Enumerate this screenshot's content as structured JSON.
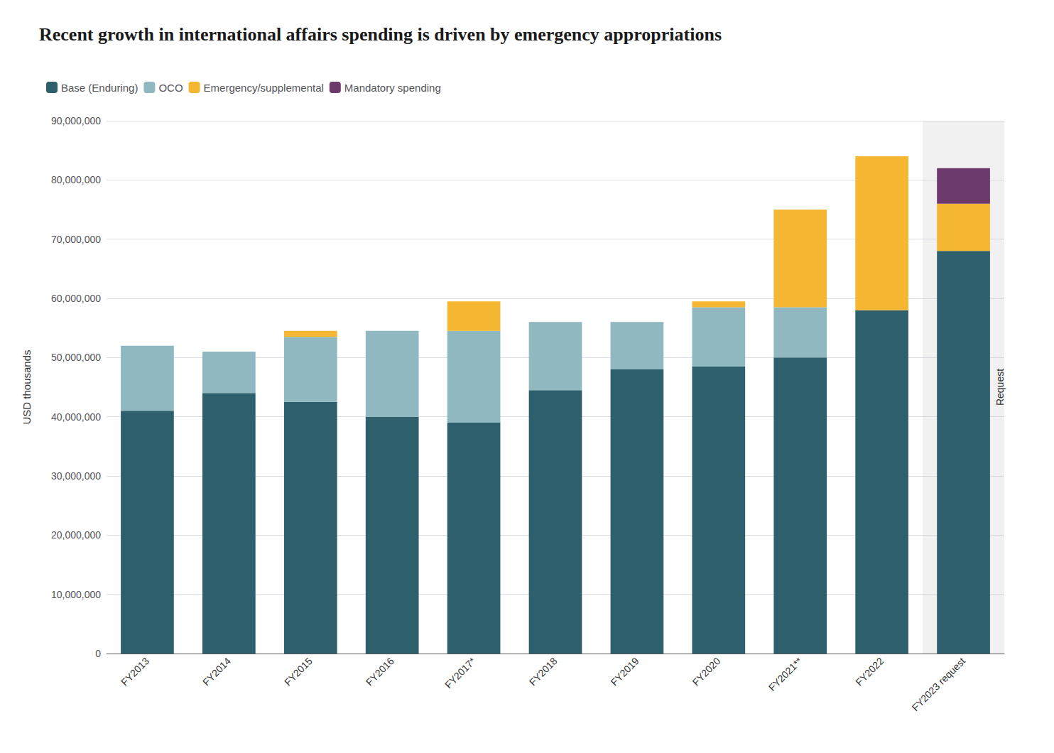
{
  "chart_data": {
    "type": "bar",
    "stacked": true,
    "title": "Recent growth in international affairs spending is driven by emergency appropriations",
    "ylabel": "USD thousands",
    "categories": [
      "FY2013",
      "FY2014",
      "FY2015",
      "FY2016",
      "FY2017*",
      "FY2018",
      "FY2019",
      "FY2020",
      "FY2021**",
      "FY2022",
      "FY2023 request"
    ],
    "series": [
      {
        "name": "Base (Enduring)",
        "color": "#2e5f6c",
        "values": [
          41000000,
          44000000,
          42500000,
          40000000,
          39000000,
          44500000,
          48000000,
          48500000,
          50000000,
          58000000,
          68000000
        ]
      },
      {
        "name": "OCO",
        "color": "#8fb8c0",
        "values": [
          11000000,
          7000000,
          11000000,
          14500000,
          15500000,
          11500000,
          8000000,
          10000000,
          8500000,
          0,
          0
        ]
      },
      {
        "name": "Emergency/supplemental",
        "color": "#f5b731",
        "values": [
          0,
          0,
          1000000,
          0,
          5000000,
          0,
          0,
          1000000,
          16500000,
          26000000,
          8000000
        ]
      },
      {
        "name": "Mandatory spending",
        "color": "#6b3a6b",
        "values": [
          0,
          0,
          0,
          0,
          0,
          0,
          0,
          0,
          0,
          0,
          6000000
        ]
      }
    ],
    "ylim": [
      0,
      90000000
    ],
    "yticks": [
      0,
      {
        "value": 10000000,
        "label": "10,000,000"
      },
      {
        "value": 20000000,
        "label": "20,000,000"
      },
      {
        "value": 30000000,
        "label": "30,000,000"
      },
      {
        "value": 40000000,
        "label": "40,000,000"
      },
      {
        "value": 50000000,
        "label": "50,000,000"
      },
      {
        "value": 60000000,
        "label": "60,000,000"
      },
      {
        "value": 70000000,
        "label": "70,000,000"
      },
      {
        "value": 80000000,
        "label": "80,000,000"
      },
      {
        "value": 90000000,
        "label": "90,000,000"
      }
    ],
    "grid": true,
    "legend": "top-left",
    "annotations": [
      {
        "text": "Request",
        "x": "FY2023 request"
      }
    ]
  }
}
